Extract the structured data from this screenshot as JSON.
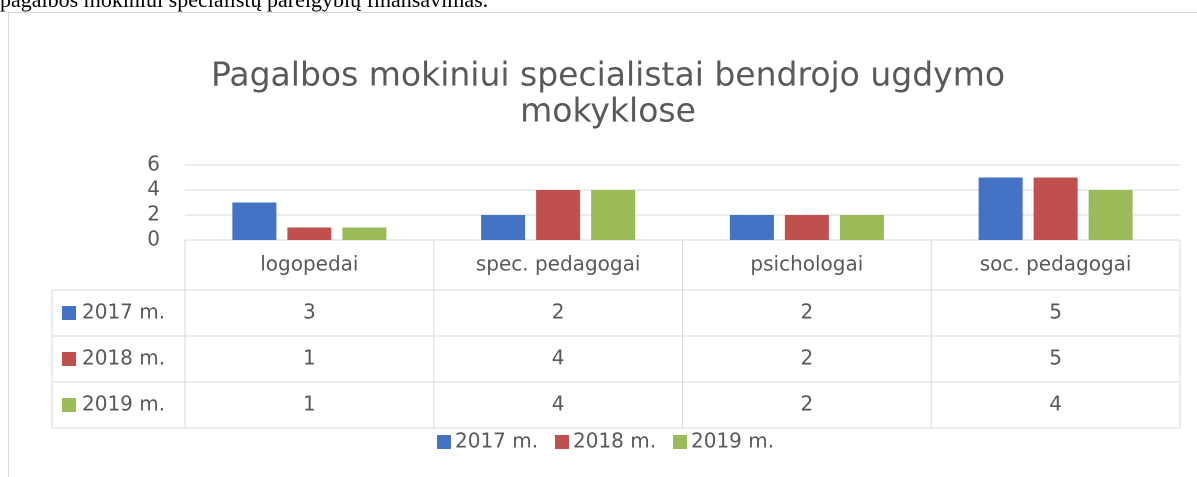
{
  "document_text": "pagalbos mokiniui specialistų pareigybių finansavimas.",
  "chart_data": {
    "type": "bar",
    "title": [
      "Pagalbos mokiniui specialistai bendrojo ugdymo",
      "mokyklose"
    ],
    "categories": [
      "logopedai",
      "spec. pedagogai",
      "psichologai",
      "soc. pedagogai"
    ],
    "series": [
      {
        "name": "2017 m.",
        "color": "#4472c4",
        "values": [
          3,
          2,
          2,
          5
        ]
      },
      {
        "name": "2018 m.",
        "color": "#c0504d",
        "values": [
          1,
          4,
          2,
          5
        ]
      },
      {
        "name": "2019 m.",
        "color": "#9bbb59",
        "values": [
          1,
          4,
          2,
          4
        ]
      }
    ],
    "ylim": [
      0,
      6
    ],
    "yticks": [
      0,
      2,
      4,
      6
    ],
    "grid": true,
    "data_table": true,
    "legend": "bottom"
  }
}
